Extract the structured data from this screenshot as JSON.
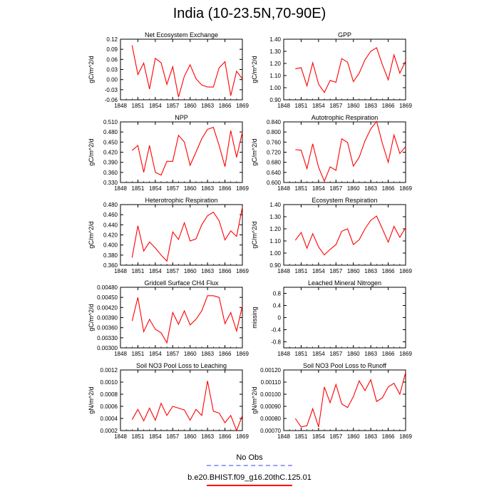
{
  "page_title": "India (10-23.5N,70-90E)",
  "legend": {
    "obs_label": "No Obs",
    "model_label": "b.e20.BHIST.f09_g16.20thC.125.01",
    "obs_color": "#9aa0ff",
    "model_color": "#ff0000"
  },
  "chart_data": [
    {
      "type": "line",
      "title": "Net Ecosystem Exchange",
      "ylabel": "gC/m^2/d",
      "xlim": [
        1848,
        1869
      ],
      "xticks": [
        "1848",
        "1851",
        "1854",
        "1857",
        "1860",
        "1863",
        "1866",
        "1869"
      ],
      "ylim": [
        -0.06,
        0.12
      ],
      "yticks": [
        "-0.06",
        "-0.03",
        "0.00",
        "0.03",
        "0.06",
        "0.09",
        "0.12"
      ],
      "x": [
        1850,
        1851,
        1852,
        1853,
        1854,
        1855,
        1856,
        1857,
        1858,
        1859,
        1860,
        1861,
        1862,
        1863,
        1864,
        1865,
        1866,
        1867,
        1868,
        1869
      ],
      "series": [
        {
          "values": [
            0.102,
            0.015,
            0.049,
            -0.028,
            0.063,
            0.05,
            -0.014,
            0.038,
            -0.052,
            0.01,
            0.044,
            0.003,
            -0.016,
            -0.022,
            -0.022,
            0.035,
            0.053,
            -0.048,
            0.025,
            0.002
          ]
        }
      ]
    },
    {
      "type": "line",
      "title": "GPP",
      "ylabel": "gC/m^2/d",
      "xlim": [
        1848,
        1869
      ],
      "xticks": [
        "1848",
        "1851",
        "1854",
        "1857",
        "1860",
        "1863",
        "1866",
        "1869"
      ],
      "ylim": [
        0.9,
        1.4
      ],
      "yticks": [
        "0.90",
        "1.00",
        "1.10",
        "1.20",
        "1.30",
        "1.40"
      ],
      "x": [
        1850,
        1851,
        1852,
        1853,
        1854,
        1855,
        1856,
        1857,
        1858,
        1859,
        1860,
        1861,
        1862,
        1863,
        1864,
        1865,
        1866,
        1867,
        1868,
        1869
      ],
      "series": [
        {
          "values": [
            1.155,
            1.165,
            1.015,
            1.205,
            1.03,
            0.96,
            1.06,
            1.045,
            1.24,
            1.21,
            1.05,
            1.12,
            1.23,
            1.3,
            1.33,
            1.19,
            1.065,
            1.27,
            1.12,
            1.22
          ]
        }
      ]
    },
    {
      "type": "line",
      "title": "NPP",
      "ylabel": "gC/m^2/d",
      "xlim": [
        1848,
        1869
      ],
      "xticks": [
        "1848",
        "1851",
        "1854",
        "1857",
        "1860",
        "1863",
        "1866",
        "1869"
      ],
      "ylim": [
        0.33,
        0.51
      ],
      "yticks": [
        "0.330",
        "0.360",
        "0.390",
        "0.420",
        "0.450",
        "0.480",
        "0.510"
      ],
      "x": [
        1850,
        1851,
        1852,
        1853,
        1854,
        1855,
        1856,
        1857,
        1858,
        1859,
        1860,
        1861,
        1862,
        1863,
        1864,
        1865,
        1866,
        1867,
        1868,
        1869
      ],
      "series": [
        {
          "values": [
            0.425,
            0.44,
            0.36,
            0.44,
            0.36,
            0.352,
            0.393,
            0.393,
            0.47,
            0.45,
            0.381,
            0.42,
            0.46,
            0.488,
            0.494,
            0.44,
            0.377,
            0.484,
            0.405,
            0.48
          ]
        }
      ]
    },
    {
      "type": "line",
      "title": "Autotrophic Respiration",
      "ylabel": "gC/m^2/d",
      "xlim": [
        1848,
        1869
      ],
      "xticks": [
        "1848",
        "1851",
        "1854",
        "1857",
        "1860",
        "1863",
        "1866",
        "1869"
      ],
      "ylim": [
        0.6,
        0.84
      ],
      "yticks": [
        "0.600",
        "0.640",
        "0.680",
        "0.720",
        "0.760",
        "0.800",
        "0.840"
      ],
      "x": [
        1850,
        1851,
        1852,
        1853,
        1854,
        1855,
        1856,
        1857,
        1858,
        1859,
        1860,
        1861,
        1862,
        1863,
        1864,
        1865,
        1866,
        1867,
        1868,
        1869
      ],
      "series": [
        {
          "values": [
            0.73,
            0.728,
            0.655,
            0.753,
            0.66,
            0.605,
            0.662,
            0.648,
            0.773,
            0.758,
            0.665,
            0.7,
            0.765,
            0.812,
            0.842,
            0.755,
            0.68,
            0.788,
            0.715,
            0.742
          ]
        }
      ]
    },
    {
      "type": "line",
      "title": "Heterotrophic Respiration",
      "ylabel": "gC/m^2/d",
      "xlim": [
        1848,
        1869
      ],
      "xticks": [
        "1848",
        "1851",
        "1854",
        "1857",
        "1860",
        "1863",
        "1866",
        "1869"
      ],
      "ylim": [
        0.36,
        0.48
      ],
      "yticks": [
        "0.360",
        "0.380",
        "0.400",
        "0.420",
        "0.440",
        "0.460",
        "0.480"
      ],
      "x": [
        1850,
        1851,
        1852,
        1853,
        1854,
        1855,
        1856,
        1857,
        1858,
        1859,
        1860,
        1861,
        1862,
        1863,
        1864,
        1865,
        1866,
        1867,
        1868,
        1869
      ],
      "series": [
        {
          "values": [
            0.375,
            0.438,
            0.388,
            0.406,
            0.394,
            0.38,
            0.368,
            0.426,
            0.411,
            0.444,
            0.408,
            0.412,
            0.44,
            0.458,
            0.465,
            0.448,
            0.41,
            0.428,
            0.417,
            0.475
          ]
        }
      ]
    },
    {
      "type": "line",
      "title": "Ecosystem Respiration",
      "ylabel": "gC/m^2/d",
      "xlim": [
        1848,
        1869
      ],
      "xticks": [
        "1848",
        "1851",
        "1854",
        "1857",
        "1860",
        "1863",
        "1866",
        "1869"
      ],
      "ylim": [
        0.9,
        1.4
      ],
      "yticks": [
        "0.90",
        "1.00",
        "1.10",
        "1.20",
        "1.30",
        "1.40"
      ],
      "x": [
        1850,
        1851,
        1852,
        1853,
        1854,
        1855,
        1856,
        1857,
        1858,
        1859,
        1860,
        1861,
        1862,
        1863,
        1864,
        1865,
        1866,
        1867,
        1868,
        1869
      ],
      "series": [
        {
          "values": [
            1.105,
            1.17,
            1.04,
            1.16,
            1.05,
            0.985,
            1.03,
            1.07,
            1.18,
            1.2,
            1.07,
            1.11,
            1.2,
            1.27,
            1.305,
            1.2,
            1.09,
            1.22,
            1.13,
            1.21
          ]
        }
      ]
    },
    {
      "type": "line",
      "title": "Gridcell Surface CH4 Flux",
      "ylabel": "gC/m^2/d",
      "xlim": [
        1848,
        1869
      ],
      "xticks": [
        "1848",
        "1851",
        "1854",
        "1857",
        "1860",
        "1863",
        "1866",
        "1869"
      ],
      "ylim": [
        0.003,
        0.0048
      ],
      "yticks": [
        "0.00300",
        "0.00330",
        "0.00360",
        "0.00390",
        "0.00420",
        "0.00450",
        "0.00480"
      ],
      "x": [
        1850,
        1851,
        1852,
        1853,
        1854,
        1855,
        1856,
        1857,
        1858,
        1859,
        1860,
        1861,
        1862,
        1863,
        1864,
        1865,
        1866,
        1867,
        1868,
        1869
      ],
      "series": [
        {
          "values": [
            0.0038,
            0.0045,
            0.00348,
            0.00385,
            0.00355,
            0.00345,
            0.00315,
            0.00405,
            0.0037,
            0.0041,
            0.00368,
            0.00385,
            0.0041,
            0.00455,
            0.00455,
            0.0045,
            0.00372,
            0.00405,
            0.0035,
            0.00425
          ]
        }
      ]
    },
    {
      "type": "line",
      "title": "Leached Mineral Nitrogen",
      "ylabel": "missing",
      "xlim": [
        1848,
        1869
      ],
      "xticks": [
        "1848",
        "1851",
        "1854",
        "1857",
        "1860",
        "1863",
        "1866",
        "1869"
      ],
      "ylim": [
        -1.0,
        1.0
      ],
      "yticks": [
        "-0.8",
        "-0.4",
        "0",
        "0.4",
        "0.8"
      ],
      "ytick_values": [
        -0.8,
        -0.4,
        0,
        0.4,
        0.8
      ],
      "x": [],
      "series": []
    },
    {
      "type": "line",
      "title": "Soil NO3 Pool Loss to Leaching",
      "ylabel": "gN/m^2/d",
      "xlim": [
        1848,
        1869
      ],
      "xticks": [
        "1848",
        "1851",
        "1854",
        "1857",
        "1860",
        "1863",
        "1866",
        "1869"
      ],
      "ylim": [
        0.0002,
        0.0012
      ],
      "yticks": [
        "0.0002",
        "0.0004",
        "0.0006",
        "0.0008",
        "0.0010",
        "0.0012"
      ],
      "x": [
        1850,
        1851,
        1852,
        1853,
        1854,
        1855,
        1856,
        1857,
        1858,
        1859,
        1860,
        1861,
        1862,
        1863,
        1864,
        1865,
        1866,
        1867,
        1868,
        1869
      ],
      "series": [
        {
          "values": [
            0.00038,
            0.00055,
            0.00036,
            0.00057,
            0.00037,
            0.00065,
            0.00045,
            0.0006,
            0.00057,
            0.00054,
            0.00037,
            0.00055,
            0.00045,
            0.00102,
            0.00052,
            0.00049,
            0.00033,
            0.00045,
            0.0002,
            0.00045
          ]
        }
      ]
    },
    {
      "type": "line",
      "title": "Soil NO3 Pool Loss to Runoff",
      "ylabel": "gN/m^2/d",
      "xlim": [
        1848,
        1869
      ],
      "xticks": [
        "1848",
        "1851",
        "1854",
        "1857",
        "1860",
        "1863",
        "1866",
        "1869"
      ],
      "ylim": [
        0.0007,
        0.0012
      ],
      "yticks": [
        "0.00070",
        "0.00080",
        "0.00090",
        "0.00100",
        "0.00110",
        "0.00120"
      ],
      "x": [
        1850,
        1851,
        1852,
        1853,
        1854,
        1855,
        1856,
        1857,
        1858,
        1859,
        1860,
        1861,
        1862,
        1863,
        1864,
        1865,
        1866,
        1867,
        1868,
        1869
      ],
      "series": [
        {
          "values": [
            0.0008,
            0.00073,
            0.00074,
            0.00088,
            0.00073,
            0.00106,
            0.00093,
            0.00108,
            0.00092,
            0.00089,
            0.00098,
            0.00111,
            0.00103,
            0.00112,
            0.00094,
            0.00097,
            0.00106,
            0.00109,
            0.001,
            0.00118
          ]
        }
      ]
    }
  ]
}
